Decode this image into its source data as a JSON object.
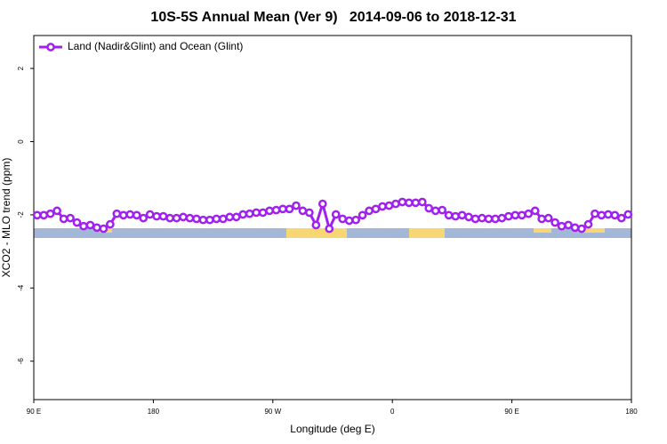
{
  "chart_data": {
    "type": "line",
    "title": "10S-5S Annual Mean (Ver 9)   2014-09-06 to 2018-12-31",
    "x_label": "Longitude (deg E)",
    "y_label": "XCO2 - MLO trend (ppm)",
    "xlim": [
      90,
      540
    ],
    "ylim": [
      -7.05,
      2.9
    ],
    "xticks": [
      {
        "value": 90,
        "label": "90 E"
      },
      180,
      {
        "value": 270,
        "label": "90 W"
      },
      {
        "value": 360,
        "label": "0"
      },
      {
        "value": 450,
        "label": "90 E"
      },
      {
        "value": 540,
        "label": "180"
      }
    ],
    "yticks": [
      -6,
      -4,
      -2,
      0,
      2
    ],
    "x": [
      92.5,
      97.5,
      102.5,
      107.5,
      112.5,
      117.5,
      122.5,
      127.5,
      132.5,
      137.5,
      142.5,
      147.5,
      152.5,
      157.5,
      162.5,
      167.5,
      172.5,
      177.5,
      182.5,
      187.5,
      192.5,
      197.5,
      202.5,
      207.5,
      212.5,
      217.5,
      222.5,
      227.5,
      232.5,
      237.5,
      242.5,
      247.5,
      252.5,
      257.5,
      262.5,
      267.5,
      272.5,
      277.5,
      282.5,
      287.5,
      292.5,
      297.5,
      302.5,
      307.5,
      312.5,
      317.5,
      322.5,
      327.5,
      332.5,
      337.5,
      342.5,
      347.5,
      352.5,
      357.5,
      362.5,
      367.5,
      372.5,
      377.5,
      382.5,
      387.5,
      392.5,
      397.5,
      402.5,
      407.5,
      412.5,
      417.5,
      422.5,
      427.5,
      432.5,
      437.5,
      442.5,
      447.5,
      452.5,
      457.5,
      462.5,
      467.5,
      472.5,
      477.5,
      482.5,
      487.5,
      492.5,
      497.5,
      502.5,
      507.5,
      512.5,
      517.5,
      522.5,
      527.5,
      532.5,
      537.5
    ],
    "series": [
      {
        "name": "Land (Nadir&Glint) and Ocean (Glint)",
        "color": "#a020f0",
        "values": [
          -2.01,
          -2.01,
          -1.97,
          -1.89,
          -2.11,
          -2.09,
          -2.21,
          -2.31,
          -2.28,
          -2.35,
          -2.38,
          -2.26,
          -1.97,
          -2.01,
          -1.99,
          -2.01,
          -2.09,
          -1.99,
          -2.04,
          -2.04,
          -2.09,
          -2.09,
          -2.06,
          -2.09,
          -2.11,
          -2.14,
          -2.14,
          -2.11,
          -2.11,
          -2.06,
          -2.06,
          -1.99,
          -1.97,
          -1.94,
          -1.94,
          -1.89,
          -1.87,
          -1.84,
          -1.84,
          -1.75,
          -1.89,
          -1.94,
          -2.28,
          -1.7,
          -2.38,
          -1.99,
          -2.11,
          -2.16,
          -2.14,
          -2.01,
          -1.89,
          -1.84,
          -1.77,
          -1.75,
          -1.7,
          -1.65,
          -1.67,
          -1.67,
          -1.65,
          -1.82,
          -1.89,
          -1.87,
          -2.01,
          -2.04,
          -2.01,
          -2.06,
          -2.11,
          -2.09,
          -2.11,
          -2.11,
          -2.09,
          -2.04,
          -2.01,
          -2.01,
          -1.97,
          -1.89,
          -2.11,
          -2.09,
          -2.21,
          -2.31,
          -2.28,
          -2.35,
          -2.38,
          -2.26,
          -1.97,
          -2.01,
          -1.99,
          -2.01,
          -2.09,
          -1.99
        ]
      }
    ],
    "legend": "top-left"
  }
}
